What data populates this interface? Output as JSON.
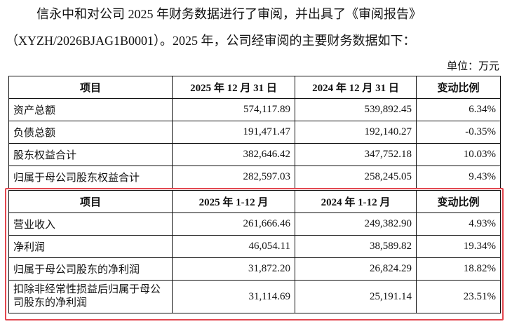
{
  "paragraph": {
    "line1": "信永中和对公司 2025 年财务数据进行了审阅，并出具了《审阅报告》",
    "line2": "（XYZH/2026BJAG1B0001）。2025 年，公司经审阅的主要财务数据如下："
  },
  "unit": "单位：万元",
  "highlight_color": "#e2474f",
  "table1": {
    "headers": [
      "项目",
      "2025 年 12 月 31 日",
      "2024 年 12 月 31 日",
      "变动比例"
    ],
    "rows": [
      [
        "资产总额",
        "574,117.89",
        "539,892.45",
        "6.34%"
      ],
      [
        "负债总额",
        "191,471.47",
        "192,140.27",
        "-0.35%"
      ],
      [
        "股东权益合计",
        "382,646.42",
        "347,752.18",
        "10.03%"
      ],
      [
        "归属于母公司股东权益合计",
        "282,597.03",
        "258,245.05",
        "9.43%"
      ]
    ]
  },
  "table2": {
    "headers": [
      "项目",
      "2025 年 1-12 月",
      "2024 年 1-12 月",
      "变动比例"
    ],
    "rows": [
      [
        "营业收入",
        "261,666.46",
        "249,382.90",
        "4.93%"
      ],
      [
        "净利润",
        "46,054.11",
        "38,589.82",
        "19.34%"
      ],
      [
        "归属于母公司股东的净利润",
        "31,872.20",
        "26,824.29",
        "18.82%"
      ],
      [
        "扣除非经常性损益后归属于母公司股东的净利润",
        "31,114.69",
        "25,191.14",
        "23.51%"
      ]
    ]
  }
}
